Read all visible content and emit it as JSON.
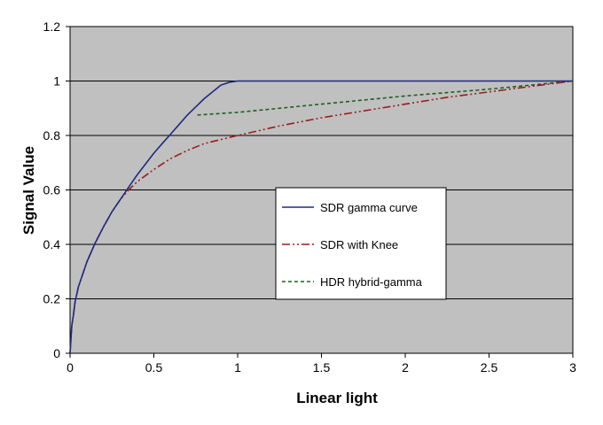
{
  "chart_data": {
    "type": "line",
    "xlabel": "Linear light",
    "ylabel": "Signal Value",
    "xlim": [
      0,
      3
    ],
    "ylim": [
      0,
      1.2
    ],
    "xticks": [
      0,
      0.5,
      1,
      1.5,
      2,
      2.5,
      3
    ],
    "yticks": [
      0,
      0.2,
      0.4,
      0.6,
      0.8,
      1,
      1.2
    ],
    "xtick_labels": [
      "0",
      "0.5",
      "1",
      "1.5",
      "2",
      "2.5",
      "3"
    ],
    "ytick_labels": [
      "0",
      "0.2",
      "0.4",
      "0.6",
      "0.8",
      "1",
      "1.2"
    ],
    "grid": "horizontal",
    "legend_position": "center-right",
    "plot_background": "#c0c0c0",
    "series": [
      {
        "name": "SDR gamma curve",
        "color": "#1f2a80",
        "style": "solid",
        "x": [
          0,
          0.01,
          0.02,
          0.03,
          0.05,
          0.1,
          0.15,
          0.2,
          0.25,
          0.3,
          0.35,
          0.4,
          0.45,
          0.5,
          0.55,
          0.6,
          0.65,
          0.7,
          0.75,
          0.8,
          0.85,
          0.9,
          0.95,
          1,
          3
        ],
        "y": [
          0,
          0.1,
          0.14,
          0.19,
          0.245,
          0.335,
          0.405,
          0.465,
          0.52,
          0.565,
          0.61,
          0.655,
          0.695,
          0.735,
          0.77,
          0.805,
          0.84,
          0.875,
          0.905,
          0.935,
          0.96,
          0.985,
          0.995,
          1,
          1
        ]
      },
      {
        "name": "SDR with Knee",
        "color": "#9b1c1c",
        "style": "dash-dot-dot",
        "x": [
          0,
          0.01,
          0.02,
          0.03,
          0.05,
          0.1,
          0.15,
          0.2,
          0.25,
          0.3,
          0.35,
          0.4,
          0.5,
          0.6,
          0.7,
          0.8,
          0.9,
          1,
          1.25,
          1.5,
          1.75,
          2,
          2.25,
          2.5,
          2.75,
          3
        ],
        "y": [
          0,
          0.1,
          0.14,
          0.19,
          0.245,
          0.335,
          0.405,
          0.465,
          0.52,
          0.565,
          0.6,
          0.63,
          0.675,
          0.715,
          0.745,
          0.77,
          0.785,
          0.8,
          0.835,
          0.865,
          0.89,
          0.915,
          0.94,
          0.96,
          0.98,
          1
        ]
      },
      {
        "name": "HDR hybrid-gamma",
        "color": "#1e5e1e",
        "style": "dashed",
        "x": [
          0.76,
          1,
          1.5,
          2,
          2.5,
          3
        ],
        "y": [
          0.875,
          0.885,
          0.915,
          0.945,
          0.97,
          1
        ]
      }
    ]
  }
}
